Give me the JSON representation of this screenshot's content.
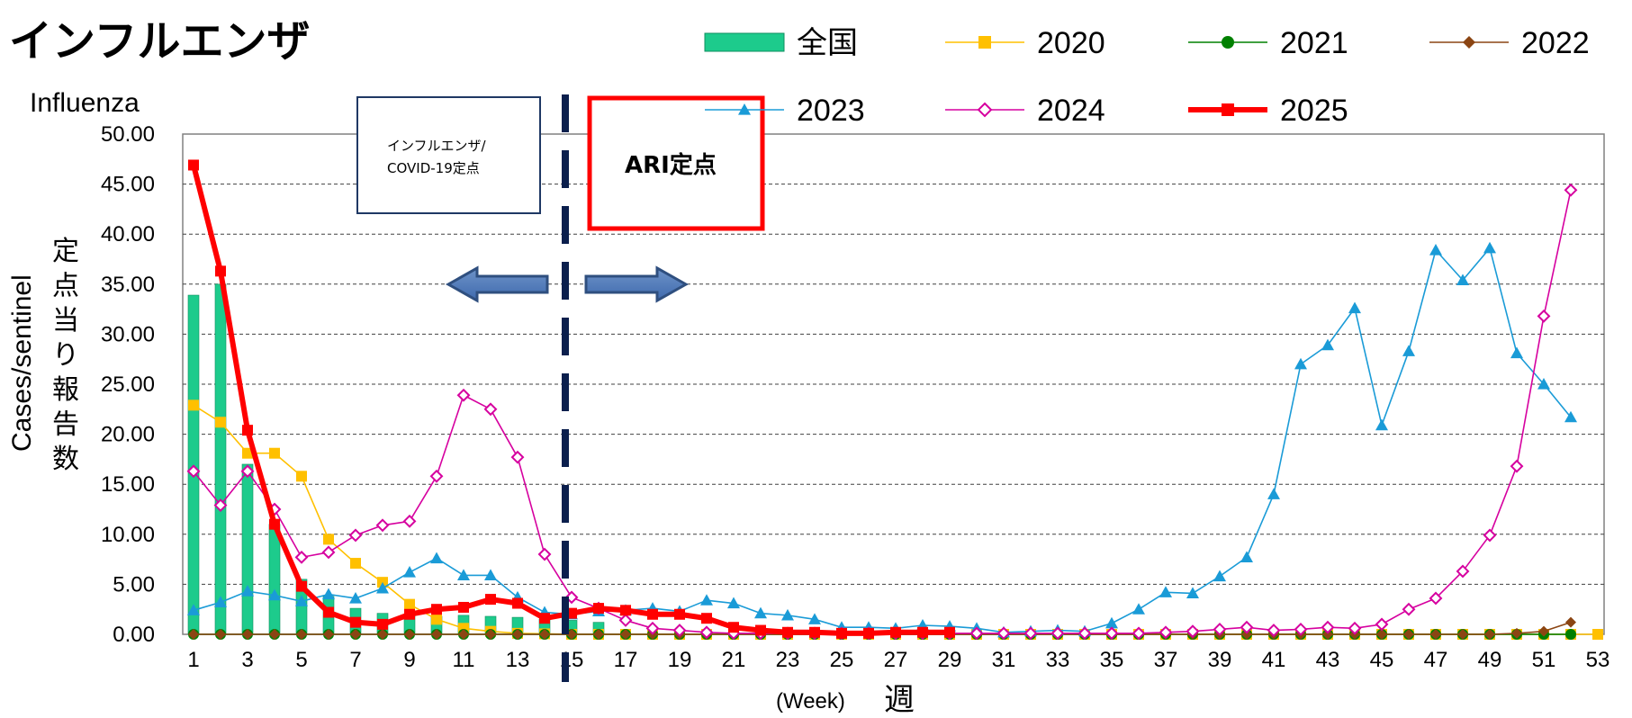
{
  "chart_data": {
    "type": "line",
    "title": "インフルエンザ",
    "subtitle": "Influenza",
    "ylabel_en": "Cases/sentinel",
    "ylabel_jp": "定点当り報告数",
    "xlabel_jp": "週",
    "xlabel_en": "(Week)",
    "ylim": [
      0,
      50
    ],
    "yticks": [
      "0.00",
      "5.00",
      "10.00",
      "15.00",
      "20.00",
      "25.00",
      "30.00",
      "35.00",
      "40.00",
      "45.00",
      "50.00"
    ],
    "xlim": [
      1,
      53
    ],
    "xticks": [
      "1",
      "3",
      "5",
      "7",
      "9",
      "11",
      "13",
      "15",
      "17",
      "19",
      "21",
      "23",
      "25",
      "27",
      "29",
      "31",
      "33",
      "35",
      "37",
      "39",
      "41",
      "43",
      "45",
      "47",
      "49",
      "51",
      "53"
    ],
    "grid": true,
    "legend_position": "top",
    "annotations": {
      "left_box": [
        "インフルエンザ/",
        "COVID-19定点"
      ],
      "right_box": "ARI定点",
      "divider_week": 14.5
    },
    "bar_series": {
      "name": "全国",
      "color": "#1DCB8C",
      "x": [
        1,
        2,
        3,
        4,
        5,
        6,
        7,
        8,
        9,
        10,
        11,
        12,
        13,
        14,
        15,
        16
      ],
      "values": [
        33.9,
        35.0,
        17.0,
        11.0,
        5.5,
        3.8,
        2.6,
        2.1,
        1.9,
        1.8,
        1.9,
        1.8,
        1.7,
        1.5,
        1.4,
        1.2
      ]
    },
    "series": [
      {
        "name": "2020",
        "color": "#FFC000",
        "marker": "square",
        "x": [
          1,
          2,
          3,
          4,
          5,
          6,
          7,
          8,
          9,
          10,
          11,
          12,
          13,
          14,
          15,
          16,
          17,
          18,
          19,
          20,
          21,
          22,
          23,
          24,
          25,
          26,
          27,
          28,
          29,
          30,
          31,
          32,
          33,
          34,
          35,
          36,
          37,
          38,
          39,
          40,
          41,
          42,
          43,
          44,
          45,
          46,
          47,
          48,
          49,
          50,
          51,
          52,
          53
        ],
        "values": [
          22.9,
          21.2,
          18.1,
          18.1,
          15.8,
          9.5,
          7.1,
          5.2,
          3.0,
          1.5,
          0.6,
          0.3,
          0.1,
          0.05,
          0,
          0,
          0,
          0,
          0,
          0,
          0,
          0,
          0,
          0,
          0,
          0,
          0,
          0,
          0,
          0,
          0,
          0,
          0,
          0,
          0,
          0,
          0,
          0,
          0,
          0,
          0,
          0,
          0,
          0,
          0,
          0,
          0,
          0,
          0,
          0,
          0,
          0,
          0
        ]
      },
      {
        "name": "2021",
        "color": "#008000",
        "marker": "circle",
        "x": [
          1,
          2,
          3,
          4,
          5,
          6,
          7,
          8,
          9,
          10,
          11,
          12,
          13,
          14,
          15,
          16,
          17,
          18,
          19,
          20,
          21,
          22,
          23,
          24,
          25,
          26,
          27,
          28,
          29,
          30,
          31,
          32,
          33,
          34,
          35,
          36,
          37,
          38,
          39,
          40,
          41,
          42,
          43,
          44,
          45,
          46,
          47,
          48,
          49,
          50,
          51,
          52
        ],
        "values": [
          0,
          0,
          0,
          0,
          0,
          0,
          0,
          0,
          0,
          0,
          0,
          0,
          0,
          0,
          0,
          0,
          0,
          0,
          0,
          0,
          0,
          0,
          0,
          0,
          0,
          0,
          0,
          0,
          0,
          0,
          0,
          0,
          0,
          0,
          0,
          0,
          0,
          0,
          0,
          0,
          0,
          0,
          0,
          0,
          0,
          0,
          0,
          0,
          0,
          0,
          0,
          0
        ]
      },
      {
        "name": "2022",
        "color": "#8B4513",
        "marker": "diamond",
        "x": [
          1,
          2,
          3,
          4,
          5,
          6,
          7,
          8,
          9,
          10,
          11,
          12,
          13,
          14,
          15,
          16,
          17,
          18,
          19,
          20,
          21,
          22,
          23,
          24,
          25,
          26,
          27,
          28,
          29,
          30,
          31,
          32,
          33,
          34,
          35,
          36,
          37,
          38,
          39,
          40,
          41,
          42,
          43,
          44,
          45,
          46,
          47,
          48,
          49,
          50,
          51,
          52
        ],
        "values": [
          0,
          0,
          0,
          0,
          0,
          0,
          0,
          0,
          0,
          0,
          0,
          0,
          0,
          0,
          0,
          0,
          0,
          0,
          0,
          0,
          0,
          0,
          0,
          0,
          0,
          0,
          0,
          0,
          0,
          0,
          0,
          0,
          0,
          0,
          0,
          0,
          0,
          0,
          0,
          0,
          0,
          0,
          0,
          0,
          0,
          0,
          0,
          0,
          0,
          0.1,
          0.3,
          1.2
        ]
      },
      {
        "name": "2023",
        "color": "#1A9BD7",
        "marker": "triangle",
        "x": [
          1,
          2,
          3,
          4,
          5,
          6,
          7,
          8,
          9,
          10,
          11,
          12,
          13,
          14,
          15,
          16,
          17,
          18,
          19,
          20,
          21,
          22,
          23,
          24,
          25,
          26,
          27,
          28,
          29,
          30,
          31,
          32,
          33,
          34,
          35,
          36,
          37,
          38,
          39,
          40,
          41,
          42,
          43,
          44,
          45,
          46,
          47,
          48,
          49,
          50,
          51,
          52
        ],
        "values": [
          2.4,
          3.2,
          4.3,
          3.9,
          3.3,
          4.0,
          3.6,
          4.6,
          6.2,
          7.6,
          5.9,
          5.9,
          3.7,
          2.2,
          2.0,
          2.3,
          2.4,
          2.6,
          2.3,
          3.4,
          3.1,
          2.1,
          1.9,
          1.5,
          0.7,
          0.7,
          0.6,
          0.9,
          0.8,
          0.6,
          0.2,
          0.3,
          0.4,
          0.3,
          1.1,
          2.5,
          4.2,
          4.1,
          5.8,
          7.7,
          14.0,
          27.0,
          28.9,
          32.6,
          20.9,
          28.3,
          38.4,
          35.4,
          38.6,
          28.1,
          25.0,
          21.7
        ]
      },
      {
        "name": "2024",
        "color": "#D6009F",
        "marker": "diamond-open",
        "x": [
          1,
          2,
          3,
          4,
          5,
          6,
          7,
          8,
          9,
          10,
          11,
          12,
          13,
          14,
          15,
          16,
          17,
          18,
          19,
          20,
          21,
          22,
          23,
          24,
          25,
          26,
          27,
          28,
          29,
          30,
          31,
          32,
          33,
          34,
          35,
          36,
          37,
          38,
          39,
          40,
          41,
          42,
          43,
          44,
          45,
          46,
          47,
          48,
          49,
          50,
          51,
          52
        ],
        "values": [
          16.3,
          12.9,
          16.3,
          12.5,
          7.7,
          8.2,
          9.9,
          10.9,
          11.3,
          15.8,
          23.9,
          22.5,
          17.7,
          8.0,
          3.7,
          2.6,
          1.4,
          0.6,
          0.4,
          0.2,
          0.1,
          0.1,
          0.1,
          0.1,
          0.1,
          0.1,
          0.1,
          0.1,
          0.1,
          0.1,
          0.1,
          0.1,
          0.1,
          0.1,
          0.1,
          0.1,
          0.2,
          0.3,
          0.5,
          0.7,
          0.4,
          0.5,
          0.7,
          0.6,
          1.0,
          2.5,
          3.6,
          6.3,
          9.9,
          16.8,
          31.8,
          44.4
        ]
      },
      {
        "name": "2025",
        "color": "#FF0000",
        "marker": "square",
        "bold": true,
        "x": [
          1,
          2,
          3,
          4,
          5,
          6,
          7,
          8,
          9,
          10,
          11,
          12,
          13,
          14,
          15,
          16,
          17,
          18,
          19,
          20,
          21,
          22,
          23,
          24,
          25,
          26,
          27,
          28,
          29
        ],
        "values": [
          46.9,
          36.3,
          20.4,
          11.0,
          4.8,
          2.2,
          1.2,
          1.0,
          2.0,
          2.5,
          2.7,
          3.5,
          3.1,
          1.6,
          2.1,
          2.6,
          2.4,
          2.0,
          2.0,
          1.6,
          0.7,
          0.4,
          0.2,
          0.2,
          0.1,
          0.1,
          0.2,
          0.2,
          0.2
        ]
      }
    ]
  }
}
